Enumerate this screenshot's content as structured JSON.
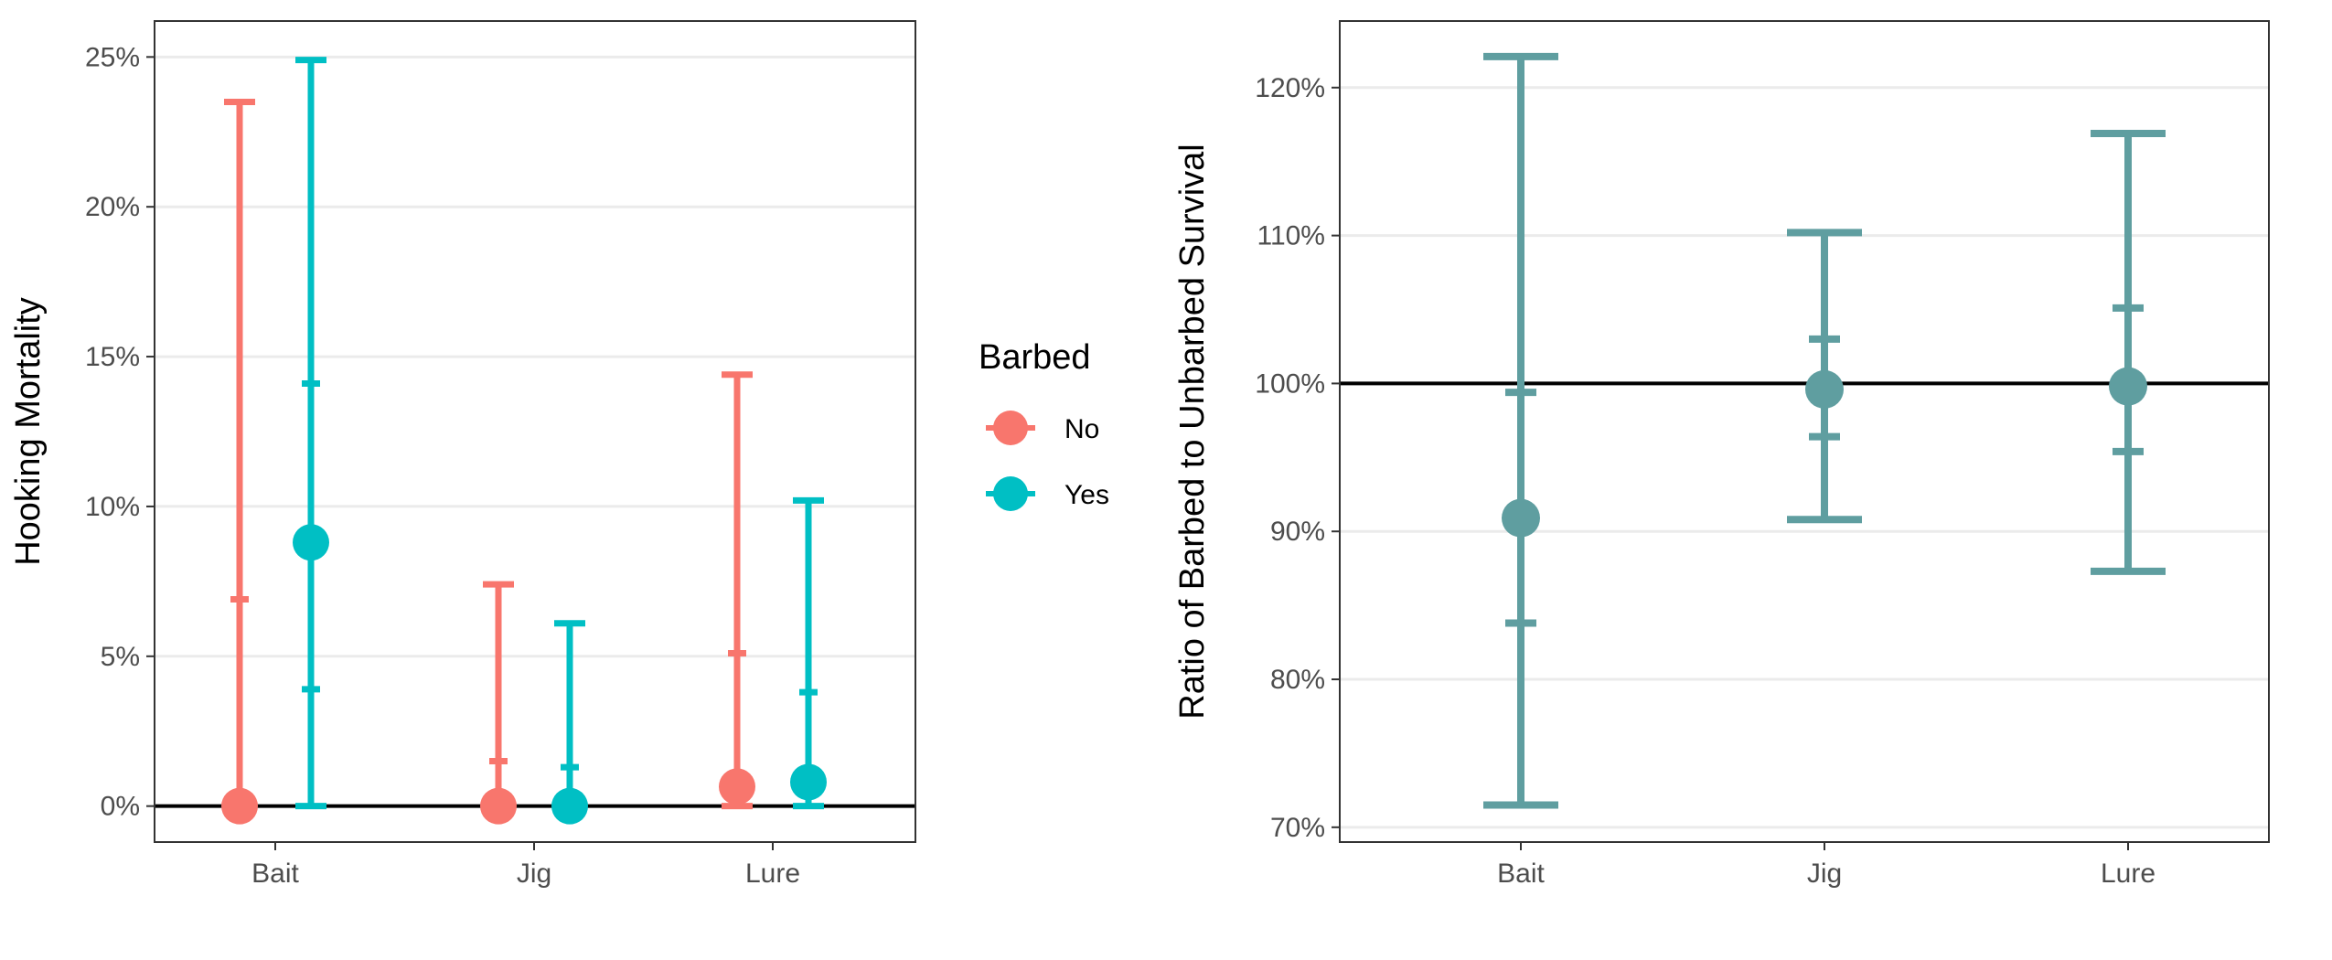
{
  "chart_data": [
    {
      "type": "errorbar",
      "categories": [
        "Bait",
        "Jig",
        "Lure"
      ],
      "ylabel": "Hooking Mortality",
      "xlabel": "",
      "ylim": [
        -0.012,
        0.262
      ],
      "yticks": [
        0,
        0.05,
        0.1,
        0.15,
        0.2,
        0.25
      ],
      "ytick_labels": [
        "0%",
        "5%",
        "10%",
        "15%",
        "20%",
        "25%"
      ],
      "grid": true,
      "reference_line": 0,
      "legend": {
        "title": "Barbed",
        "position": "right",
        "entries": [
          "No",
          "Yes"
        ]
      },
      "series": [
        {
          "name": "No",
          "color": "#F8766D",
          "estimate": [
            0.0,
            0.0,
            0.0065
          ],
          "inner_lower": [
            0.0,
            0.0,
            0.0
          ],
          "inner_upper": [
            0.069,
            0.015,
            0.051
          ],
          "outer_lower": [
            0.0,
            0.0,
            0.0
          ],
          "outer_upper": [
            0.235,
            0.074,
            0.144
          ]
        },
        {
          "name": "Yes",
          "color": "#00BFC4",
          "estimate": [
            0.088,
            0.0,
            0.008
          ],
          "inner_lower": [
            0.039,
            0.0,
            0.0
          ],
          "inner_upper": [
            0.141,
            0.013,
            0.038
          ],
          "outer_lower": [
            0.0,
            0.0,
            0.0
          ],
          "outer_upper": [
            0.249,
            0.061,
            0.102
          ]
        }
      ]
    },
    {
      "type": "errorbar",
      "categories": [
        "Bait",
        "Jig",
        "Lure"
      ],
      "ylabel": "Ratio of Barbed to Unbarbed Survival",
      "xlabel": "",
      "ylim": [
        0.69,
        1.245
      ],
      "yticks": [
        0.7,
        0.8,
        0.9,
        1.0,
        1.1,
        1.2
      ],
      "ytick_labels": [
        "70%",
        "80%",
        "90%",
        "100%",
        "110%",
        "120%"
      ],
      "grid": true,
      "reference_line": 1.0,
      "series": [
        {
          "color": "#5F9EA0",
          "estimate": [
            0.909,
            0.996,
            0.998
          ],
          "inner_lower": [
            0.838,
            0.964,
            0.954
          ],
          "inner_upper": [
            0.994,
            1.03,
            1.051
          ],
          "outer_lower": [
            0.715,
            0.908,
            0.873
          ],
          "outer_upper": [
            1.221,
            1.102,
            1.169
          ]
        }
      ]
    }
  ]
}
